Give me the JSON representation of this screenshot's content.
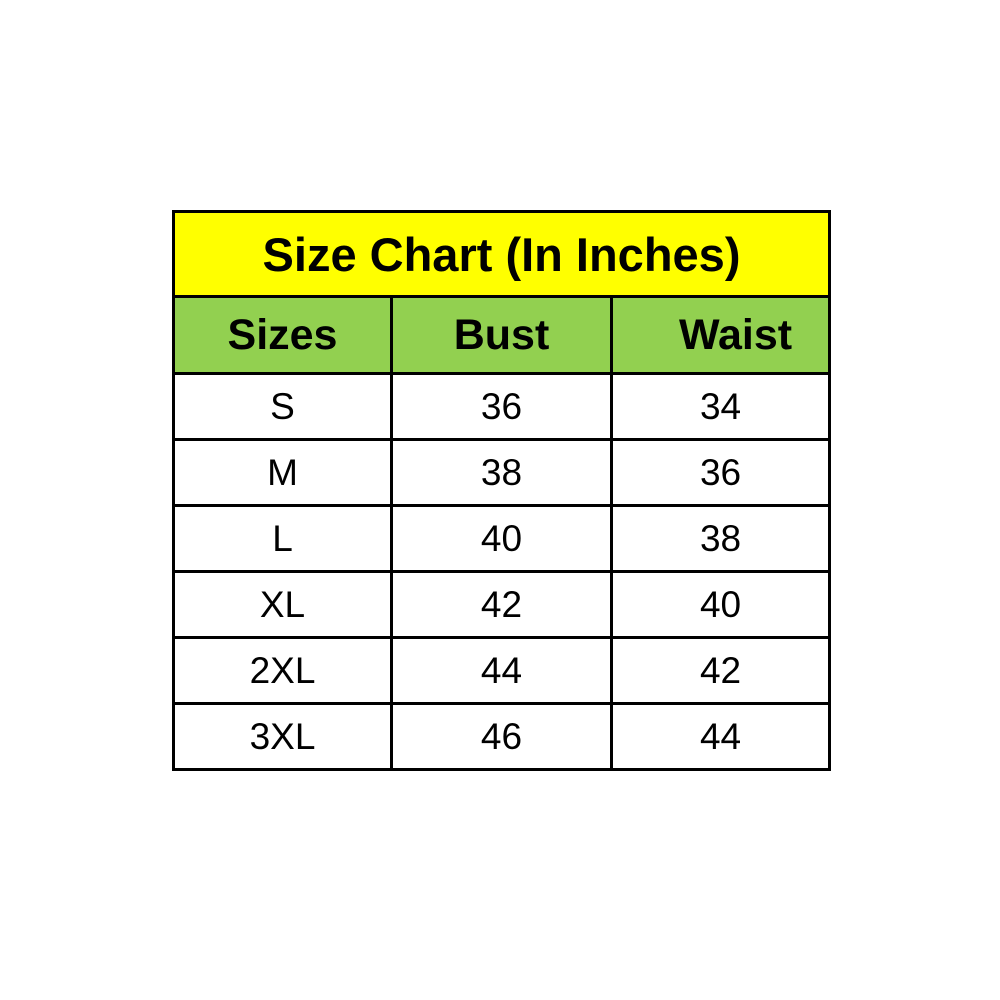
{
  "size_chart": {
    "title": "Size Chart (In Inches)",
    "columns": [
      "Sizes",
      "Bust",
      "Waist"
    ],
    "rows": [
      {
        "size": "S",
        "bust": "36",
        "waist": "34"
      },
      {
        "size": "M",
        "bust": "38",
        "waist": "36"
      },
      {
        "size": "L",
        "bust": "40",
        "waist": "38"
      },
      {
        "size": "XL",
        "bust": "42",
        "waist": "40"
      },
      {
        "size": "2XL",
        "bust": "44",
        "waist": "42"
      },
      {
        "size": "3XL",
        "bust": "46",
        "waist": "44"
      }
    ],
    "colors": {
      "title_background": "#FFFF00",
      "header_background": "#92D050",
      "border": "#000000",
      "text": "#000000",
      "page_background": "#FFFFFF"
    }
  },
  "chart_data": {
    "type": "table",
    "title": "Size Chart (In Inches)",
    "columns": [
      "Sizes",
      "Bust",
      "Waist"
    ],
    "rows": [
      [
        "S",
        36,
        34
      ],
      [
        "M",
        38,
        36
      ],
      [
        "L",
        40,
        38
      ],
      [
        "XL",
        42,
        40
      ],
      [
        "2XL",
        44,
        42
      ],
      [
        "3XL",
        46,
        44
      ]
    ],
    "units": "inches",
    "layout_hints": {
      "title_row_background": "#FFFF00",
      "header_row_background": "#92D050",
      "grid": "on",
      "title_align": "center",
      "header_align": "left",
      "data_align": "center"
    }
  }
}
